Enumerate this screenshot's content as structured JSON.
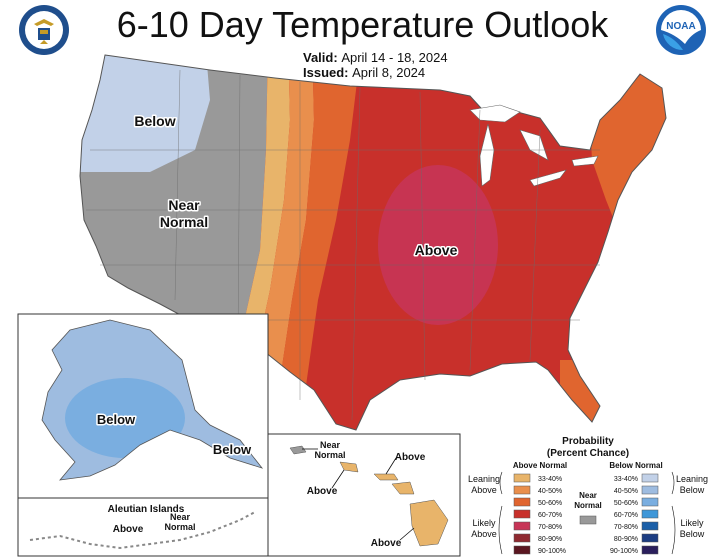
{
  "title": "6-10 Day Temperature Outlook",
  "valid_label": "Valid:",
  "valid_value": "April 14 - 18, 2024",
  "issued_label": "Issued:",
  "issued_value": "April 8, 2024",
  "logos": {
    "left": "commerce-department-seal",
    "right": "noaa-logo",
    "noaa_text": "NOAA"
  },
  "map_labels": {
    "conus_below": "Below",
    "conus_near_1": "Near",
    "conus_near_2": "Normal",
    "conus_above": "Above",
    "alaska_below_1": "Below",
    "alaska_below_2": "Below",
    "aleutian_title": "Aleutian Islands",
    "aleutian_above": "Above",
    "aleutian_near_1": "Near",
    "aleutian_near_2": "Normal",
    "hawaii_near_1": "Near",
    "hawaii_near_2": "Normal",
    "hawaii_above_1": "Above",
    "hawaii_above_2": "Above",
    "hawaii_above_3": "Above"
  },
  "legend": {
    "title_1": "Probability",
    "title_2": "(Percent Chance)",
    "above_header": "Above Normal",
    "below_header": "Below Normal",
    "leaning_above_1": "Leaning",
    "leaning_above_2": "Above",
    "likely_above_1": "Likely",
    "likely_above_2": "Above",
    "near_1": "Near",
    "near_2": "Normal",
    "leaning_below_1": "Leaning",
    "leaning_below_2": "Below",
    "likely_below_1": "Likely",
    "likely_below_2": "Below",
    "above_bins": [
      {
        "label": "33-40%",
        "color": "#e8b46a"
      },
      {
        "label": "40-50%",
        "color": "#e98f4d"
      },
      {
        "label": "50-60%",
        "color": "#e0652f"
      },
      {
        "label": "60-70%",
        "color": "#c8302b"
      },
      {
        "label": "70-80%",
        "color": "#c73557"
      },
      {
        "label": "80-90%",
        "color": "#8f2930"
      },
      {
        "label": "90-100%",
        "color": "#5a1620"
      }
    ],
    "near_color": "#999999",
    "below_bins": [
      {
        "label": "33-40%",
        "color": "#c2d1e8"
      },
      {
        "label": "40-50%",
        "color": "#9ebce0"
      },
      {
        "label": "50-60%",
        "color": "#7aaee0"
      },
      {
        "label": "60-70%",
        "color": "#3f97d8"
      },
      {
        "label": "70-80%",
        "color": "#1b5fa8"
      },
      {
        "label": "80-90%",
        "color": "#1c3d82"
      },
      {
        "label": "90-100%",
        "color": "#2a1e5c"
      }
    ]
  }
}
